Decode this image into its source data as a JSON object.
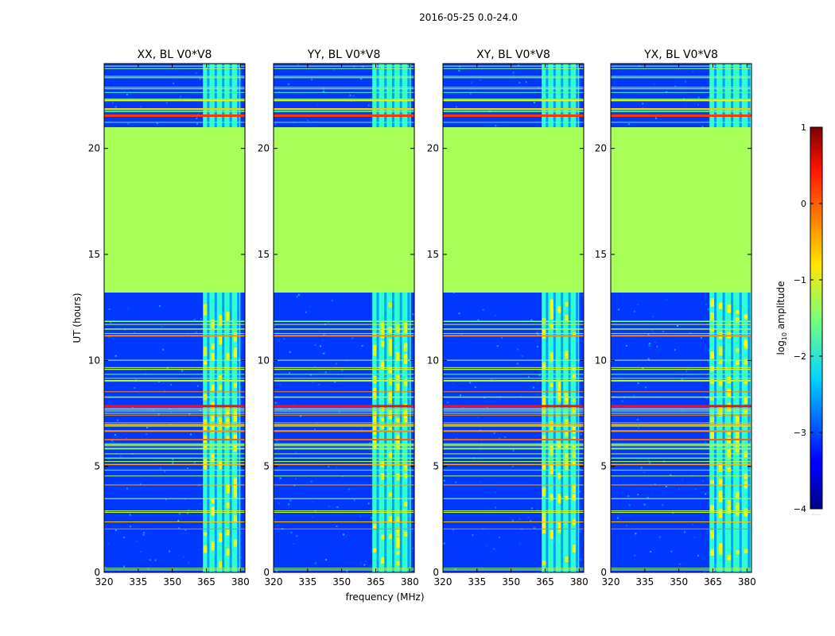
{
  "figure_title": "2016-05-25 0.0-24.0",
  "colors": {
    "background_low": "#0022ff",
    "flagged_fill": "#99ff55",
    "frame": "#000000"
  },
  "chart_data": [
    {
      "type": "heatmap",
      "title": "XX, BL V0*V8",
      "xlabel": "",
      "ylabel": "UT (hours)",
      "xlim": [
        320,
        382
      ],
      "ylim": [
        0,
        24
      ],
      "xticks": [
        320,
        335,
        350,
        365,
        380
      ],
      "yticks": [
        0,
        5,
        10,
        15,
        20
      ],
      "flagged_range_hours": [
        13.2,
        21.0
      ],
      "flagged_log10_amplitude": -1.3,
      "rfi_band_mhz": [
        363.5,
        380.0
      ]
    },
    {
      "type": "heatmap",
      "title": "YY, BL V0*V8",
      "xlabel": "frequency (MHz)",
      "ylabel": "",
      "xlim": [
        320,
        382
      ],
      "ylim": [
        0,
        24
      ],
      "xticks": [
        320,
        335,
        350,
        365,
        380
      ],
      "yticks": [
        0,
        5,
        10,
        15,
        20
      ],
      "flagged_range_hours": [
        13.2,
        21.0
      ],
      "flagged_log10_amplitude": -1.3,
      "rfi_band_mhz": [
        363.5,
        380.5
      ]
    },
    {
      "type": "heatmap",
      "title": "XY, BL V0*V8",
      "xlabel": "",
      "ylabel": "",
      "xlim": [
        320,
        382
      ],
      "ylim": [
        0,
        24
      ],
      "xticks": [
        320,
        335,
        350,
        365,
        380
      ],
      "yticks": [
        0,
        5,
        10,
        15,
        20
      ],
      "flagged_range_hours": [
        13.2,
        21.0
      ],
      "flagged_log10_amplitude": -1.3,
      "rfi_band_mhz": [
        363.5,
        380.0
      ]
    },
    {
      "type": "heatmap",
      "title": "YX, BL V0*V8",
      "xlabel": "",
      "ylabel": "",
      "xlim": [
        320,
        382
      ],
      "ylim": [
        0,
        24
      ],
      "xticks": [
        320,
        335,
        350,
        365,
        380
      ],
      "yticks": [
        0,
        5,
        10,
        15,
        20
      ],
      "flagged_range_hours": [
        13.2,
        21.0
      ],
      "flagged_log10_amplitude": -1.3,
      "rfi_band_mhz": [
        363.5,
        382.0
      ]
    }
  ],
  "colorbar": {
    "label_prefix": "log",
    "label_subscript": "10",
    "label_suffix": " amplitude",
    "range": [
      -4,
      1
    ],
    "ticks": [
      -4,
      -3,
      -2,
      -1,
      0,
      1
    ],
    "tick_labels": [
      "−4",
      "−3",
      "−2",
      "−1",
      "0",
      "1"
    ],
    "colormap": "jet",
    "footnote": "......"
  }
}
